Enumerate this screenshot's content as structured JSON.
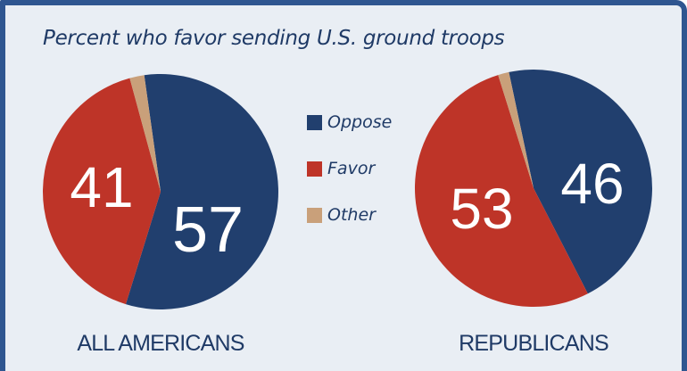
{
  "chart_data": [
    {
      "type": "pie",
      "title": "Percent who favor sending U.S. ground troops",
      "label": "ALL AMERICANS",
      "slices": [
        {
          "name": "Oppose",
          "value": 57,
          "label": "57"
        },
        {
          "name": "Favor",
          "value": 41,
          "label": "41"
        },
        {
          "name": "Other",
          "value": 2,
          "label": ""
        }
      ]
    },
    {
      "type": "pie",
      "title": "Percent who favor sending U.S. ground troops",
      "label": "REPUBLICANS",
      "slices": [
        {
          "name": "Oppose",
          "value": 46,
          "label": "46"
        },
        {
          "name": "Favor",
          "value": 53,
          "label": "53"
        },
        {
          "name": "Other",
          "value": 1.5,
          "label": ""
        }
      ]
    }
  ],
  "title": "Percent who favor sending U.S. ground troops",
  "legend": [
    {
      "name": "Oppose",
      "color": "#213f6e"
    },
    {
      "name": "Favor",
      "color": "#be3428"
    },
    {
      "name": "Other",
      "color": "#c9a07a"
    }
  ],
  "colors": {
    "Oppose": "#213f6e",
    "Favor": "#be3428",
    "Other": "#c9a07a",
    "border": "#2f5690",
    "background": "#e9eef4"
  }
}
